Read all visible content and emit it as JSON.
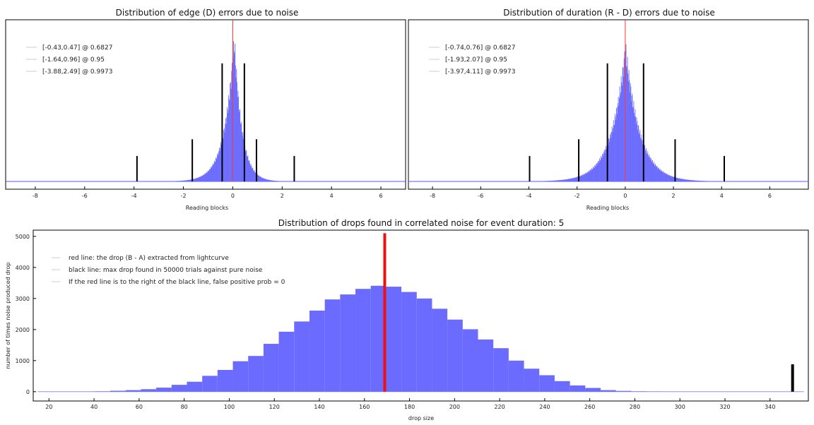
{
  "chart_data": [
    {
      "type": "bar",
      "title": "Distribution of edge (D) errors due to noise",
      "xlabel": "Reading blocks",
      "ylabel": "",
      "xlim": [
        -9.2,
        7.0
      ],
      "x_ticks": [
        "-8",
        "-6",
        "-4",
        "-2",
        "0",
        "2",
        "4",
        "6"
      ],
      "y_ticks_shown": false,
      "histogram": {
        "center": 0.05,
        "sigma_left": 0.55,
        "sigma_right": 0.42,
        "color": "#6b6bff"
      },
      "marker_line": {
        "x": 0.0,
        "color": "#ff3333"
      },
      "intervals": [
        {
          "label": "[-0.43,0.47] @ 0.6827",
          "low": -0.43,
          "high": 0.47,
          "height": 0.75
        },
        {
          "label": "[-1.64,0.96] @ 0.95",
          "low": -1.64,
          "high": 0.96,
          "height": 0.25
        },
        {
          "label": "[-3.88,2.49] @ 0.9973",
          "low": -3.88,
          "high": 2.49,
          "height": 0.14
        }
      ],
      "legend_position": "top-left"
    },
    {
      "type": "bar",
      "title": "Distribution of duration (R - D) errors due to noise",
      "xlabel": "Reading blocks",
      "ylabel": "",
      "xlim": [
        -9.0,
        7.6
      ],
      "x_ticks": [
        "-8",
        "-6",
        "-4",
        "-2",
        "0",
        "2",
        "4",
        "6"
      ],
      "y_ticks_shown": false,
      "histogram": {
        "center": 0.0,
        "sigma_left": 0.8,
        "sigma_right": 0.8,
        "color": "#6b6bff"
      },
      "marker_line": {
        "x": 0.0,
        "color": "#ff3333"
      },
      "intervals": [
        {
          "label": "[-0.74,0.76] @ 0.6827",
          "low": -0.74,
          "high": 0.76,
          "height": 0.75
        },
        {
          "label": "[-1.93,2.07] @ 0.95",
          "low": -1.93,
          "high": 2.07,
          "height": 0.25
        },
        {
          "label": "[-3.97,4.11] @ 0.9973",
          "low": -3.97,
          "high": 4.11,
          "height": 0.14
        }
      ],
      "legend_position": "top-left"
    },
    {
      "type": "bar",
      "title": "Distribution of drops found in correlated noise for event duration: 5",
      "xlabel": "drop size",
      "ylabel": "number of times noise produced drop",
      "xlim": [
        13,
        357
      ],
      "ylim": [
        -300,
        5200
      ],
      "x_ticks": [
        "20",
        "40",
        "60",
        "80",
        "100",
        "120",
        "140",
        "160",
        "180",
        "200",
        "220",
        "240",
        "260",
        "280",
        "300",
        "320",
        "340"
      ],
      "y_ticks": [
        "0",
        "1000",
        "2000",
        "3000",
        "4000",
        "5000"
      ],
      "bin_width": 6.8,
      "bins_start": 13.2,
      "values": [
        0,
        0,
        0,
        0,
        10,
        30,
        50,
        80,
        130,
        220,
        320,
        510,
        700,
        980,
        1150,
        1540,
        1930,
        2260,
        2610,
        2970,
        3130,
        3310,
        3410,
        3380,
        3210,
        3000,
        2670,
        2320,
        2010,
        1680,
        1400,
        1000,
        740,
        530,
        340,
        200,
        120,
        50,
        25,
        10,
        5,
        0,
        0
      ],
      "color": "#6b6bff",
      "red_line": {
        "x": 169,
        "top": 5100,
        "color": "#ee1111"
      },
      "black_line": {
        "x": 350,
        "top": 880,
        "color": "#000000"
      },
      "legend": [
        "red line: the drop (B - A) extracted from lightcurve",
        "black line: max drop found in 50000 trials against pure noise",
        "If the red line is to the right of the black line, false positive prob = 0"
      ],
      "legend_position": "top-left"
    }
  ]
}
